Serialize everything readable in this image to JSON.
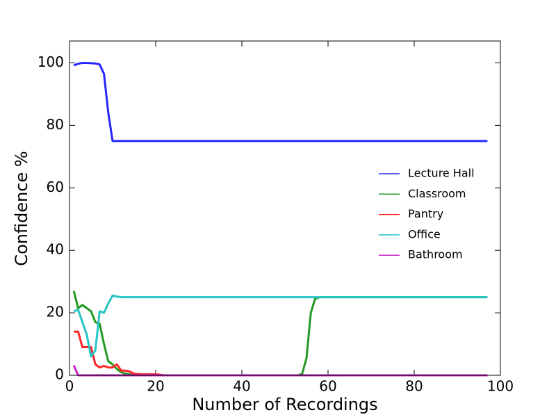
{
  "chart_data": {
    "type": "line",
    "xlabel": "Number of Recordings",
    "ylabel": "Confidence %",
    "x": [
      1,
      2,
      3,
      4,
      5,
      6,
      7,
      8,
      9,
      10,
      11,
      12,
      13,
      14,
      15,
      16,
      17,
      18,
      19,
      20,
      21,
      22,
      53,
      54,
      55,
      56,
      57,
      58,
      97
    ],
    "series": [
      {
        "name": "Lecture Hall",
        "color": "#2626ff",
        "values": [
          99.2,
          99.7,
          100,
          100,
          99.9,
          99.8,
          99.5,
          96.5,
          84,
          75,
          75,
          75,
          75,
          75,
          75,
          75,
          75,
          75,
          75,
          75,
          75,
          75,
          75,
          75,
          75,
          75,
          75,
          75,
          75
        ]
      },
      {
        "name": "Classroom",
        "color": "#229a22",
        "values": [
          27,
          21.5,
          22.5,
          21.5,
          20.5,
          17,
          16.5,
          10,
          4.5,
          3.5,
          2,
          1,
          0.5,
          0.3,
          0.1,
          0,
          0,
          0,
          0,
          0,
          0,
          0,
          0,
          0.5,
          5.5,
          20,
          24.5,
          25,
          25
        ]
      },
      {
        "name": "Pantry",
        "color": "#ff2626",
        "values": [
          14,
          14,
          9,
          9,
          9,
          3.5,
          2.5,
          3,
          2.5,
          2.5,
          3.5,
          1.5,
          1.5,
          1.2,
          0.5,
          0.4,
          0.3,
          0.3,
          0.3,
          0.3,
          0.2,
          0,
          0,
          0,
          0,
          0,
          0,
          0,
          0
        ]
      },
      {
        "name": "Office",
        "color": "#26c4c4",
        "values": [
          20.5,
          21,
          17,
          13,
          6,
          8,
          20.5,
          20,
          23,
          25.5,
          25.2,
          25,
          25,
          25,
          25,
          25,
          25,
          25,
          25,
          25,
          25,
          25,
          25,
          25,
          25,
          25,
          25,
          25,
          25
        ]
      },
      {
        "name": "Bathroom",
        "color": "#c426c4",
        "values": [
          3.2,
          0,
          0,
          0,
          0,
          0,
          0,
          0,
          0,
          0,
          0,
          0,
          0,
          0,
          0,
          0,
          0,
          0,
          0,
          0,
          0,
          0,
          0,
          0,
          0,
          0,
          0,
          0,
          0
        ]
      }
    ],
    "xlim": [
      0,
      100
    ],
    "xticks": [
      0,
      20,
      40,
      60,
      80,
      100
    ],
    "ylim": [
      0,
      107
    ],
    "yticks": [
      0,
      20,
      40,
      60,
      80,
      100
    ],
    "legend": "right"
  }
}
